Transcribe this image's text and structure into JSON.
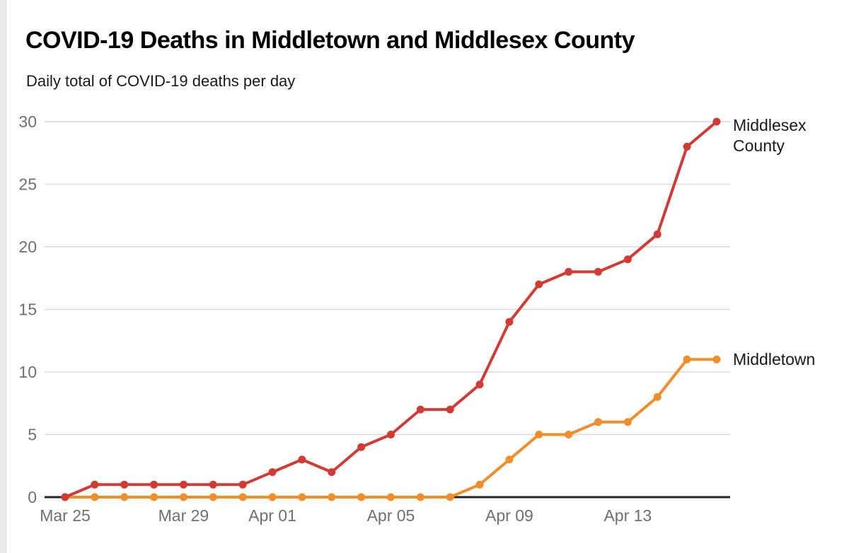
{
  "page": {
    "title": "COVID-19 Deaths in Middletown and Middlesex County",
    "subtitle": "Daily total of COVID-19 deaths per day"
  },
  "chart_data": {
    "type": "line",
    "title": "COVID-19 Deaths in Middletown and Middlesex County",
    "subtitle": "Daily total of COVID-19 deaths per day",
    "categories": [
      "Mar 25",
      "Mar 26",
      "Mar 27",
      "Mar 28",
      "Mar 29",
      "Mar 30",
      "Mar 31",
      "Apr 01",
      "Apr 02",
      "Apr 03",
      "Apr 04",
      "Apr 05",
      "Apr 06",
      "Apr 07",
      "Apr 08",
      "Apr 09",
      "Apr 10",
      "Apr 11",
      "Apr 12",
      "Apr 13",
      "Apr 14",
      "Apr 15",
      "Apr 16"
    ],
    "series": [
      {
        "name": "Middlesex County",
        "color": "#D23B33",
        "values": [
          0,
          1,
          1,
          1,
          1,
          1,
          1,
          2,
          3,
          2,
          4,
          5,
          7,
          7,
          9,
          14,
          17,
          18,
          18,
          19,
          21,
          28,
          30
        ]
      },
      {
        "name": "Middletown",
        "color": "#F08E2B",
        "values": [
          0,
          0,
          0,
          0,
          0,
          0,
          0,
          0,
          0,
          0,
          0,
          0,
          0,
          0,
          1,
          3,
          5,
          5,
          6,
          6,
          8,
          11,
          11
        ]
      }
    ],
    "ylim": [
      0,
      30
    ],
    "yticks": [
      0,
      5,
      10,
      15,
      20,
      25,
      30
    ],
    "xticks": [
      {
        "label": "Mar 25",
        "index": 0
      },
      {
        "label": "Mar 29",
        "index": 4
      },
      {
        "label": "Apr 01",
        "index": 7
      },
      {
        "label": "Apr 05",
        "index": 11
      },
      {
        "label": "Apr 09",
        "index": 15
      },
      {
        "label": "Apr 13",
        "index": 19
      }
    ],
    "grid": "horizontal",
    "legend_position": "line-end-labels-right"
  },
  "colors": {
    "axis_text": "#707070",
    "grid": "#dcdcdc",
    "baseline": "#222222",
    "title": "#000000",
    "subtitle": "#1a1a1a"
  }
}
